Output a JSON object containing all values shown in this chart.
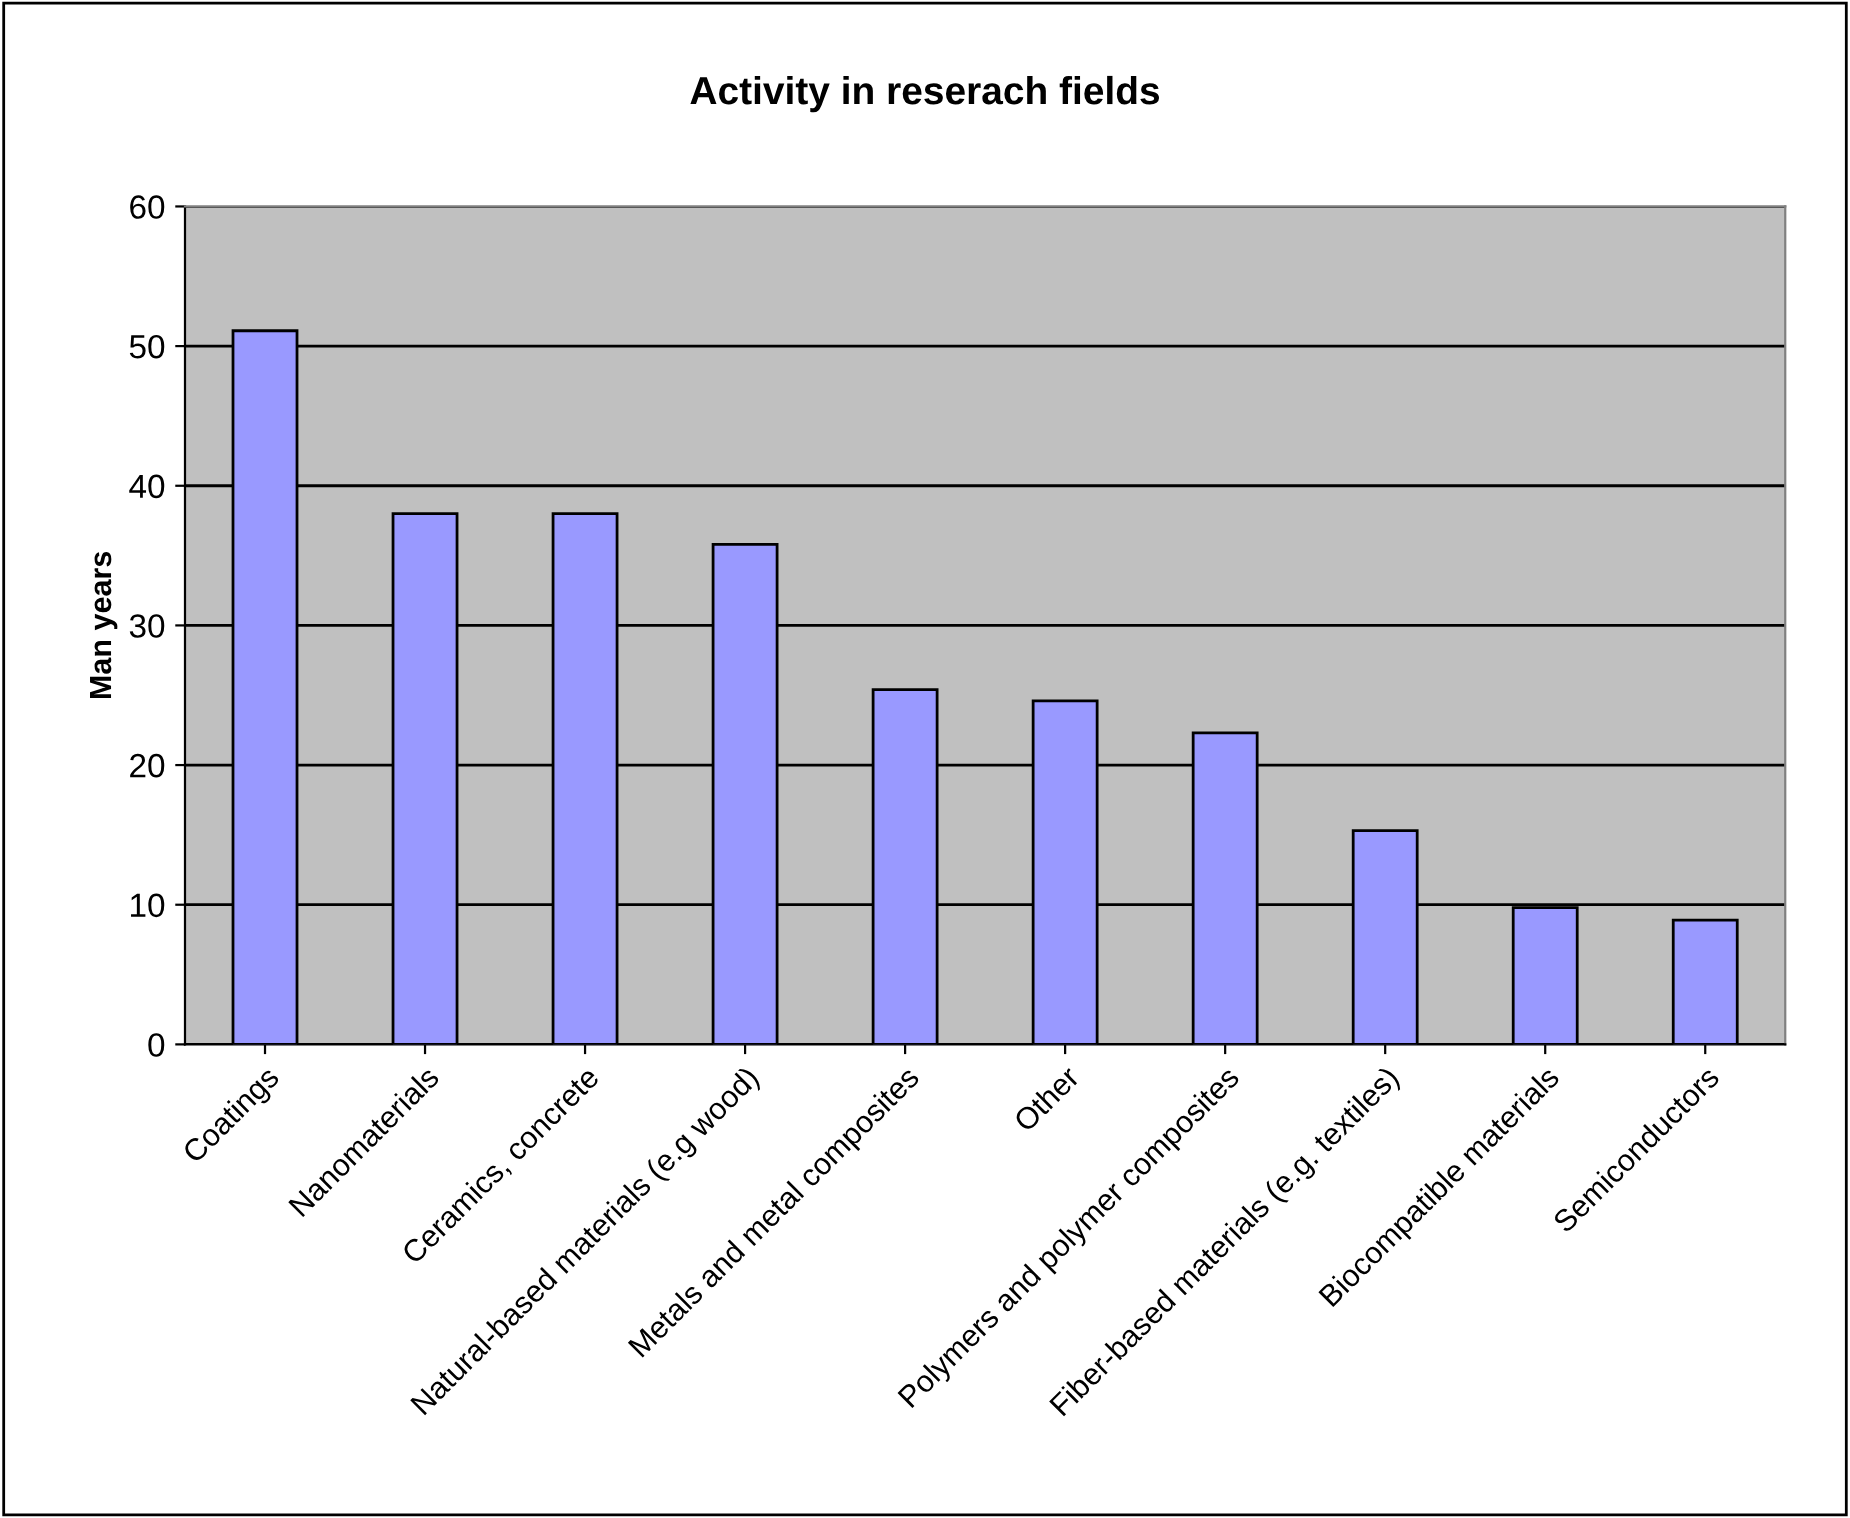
{
  "chart_data": {
    "type": "bar",
    "title": "Activity in reserach fields",
    "ylabel": "Man years",
    "categories": [
      "Coatings",
      "Nanomaterials",
      "Ceramics, concrete",
      "Natural-based materials (e.g wood)",
      "Metals and metal composites",
      "Other",
      "Polymers and polymer composites",
      "Fiber-based materials (e.g. textiles)",
      "Biocompatible materials",
      "Semiconductors"
    ],
    "values": [
      51.1,
      38,
      38,
      35.8,
      25.4,
      24.6,
      22.3,
      15.3,
      9.8,
      8.9
    ],
    "color": "#9999ff",
    "ylim": [
      0,
      60
    ],
    "yticks": [
      0,
      10,
      20,
      30,
      40,
      50,
      60
    ],
    "grid": "y",
    "legend": false
  }
}
